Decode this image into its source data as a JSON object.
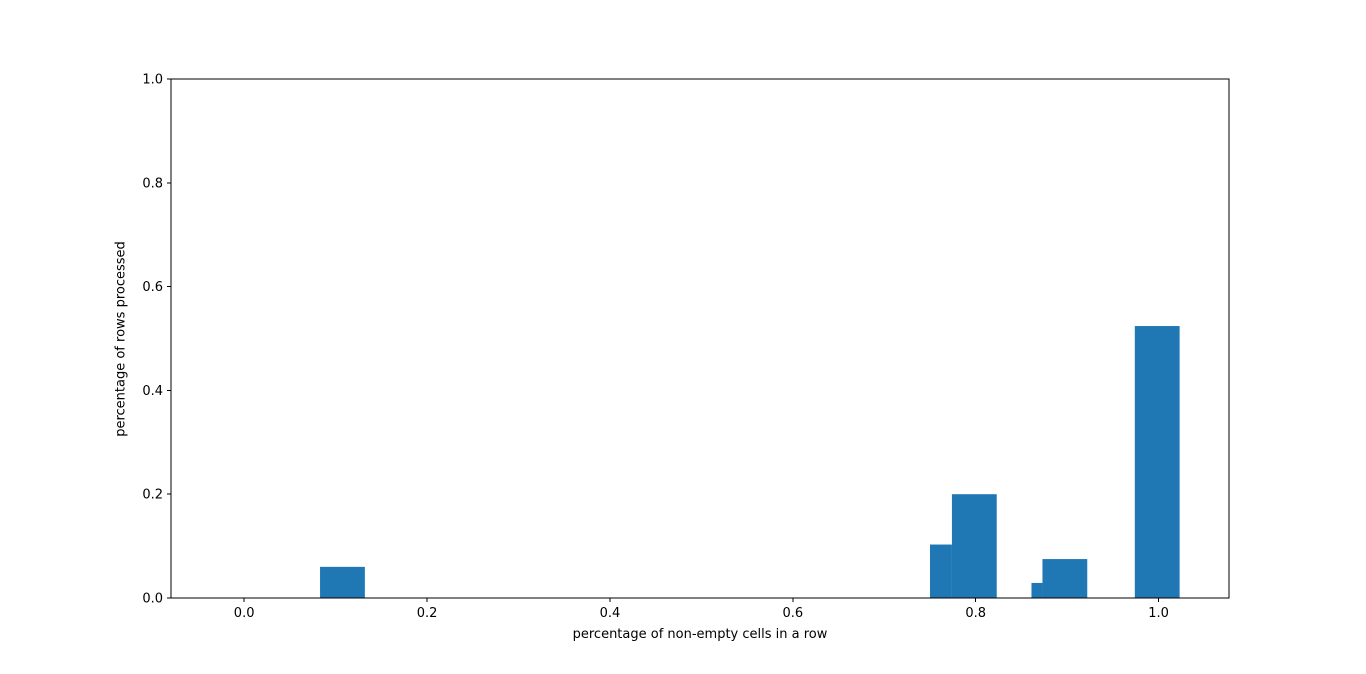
{
  "figure": {
    "background": "#ffffff"
  },
  "chart_data": {
    "type": "bar",
    "title": "",
    "xlabel": "percentage of non-empty cells in a row",
    "ylabel": "percentage of rows processed",
    "xlim": [
      -0.08,
      1.077
    ],
    "ylim": [
      0.0,
      1.0
    ],
    "xticks": [
      0.0,
      0.2,
      0.4,
      0.6,
      0.8,
      1.0
    ],
    "xtick_labels": [
      "0.0",
      "0.2",
      "0.4",
      "0.6",
      "0.8",
      "1.0"
    ],
    "yticks": [
      0.0,
      0.2,
      0.4,
      0.6,
      0.8,
      1.0
    ],
    "ytick_labels": [
      "0.0",
      "0.2",
      "0.4",
      "0.6",
      "0.8",
      "1.0"
    ],
    "grid": false,
    "legend": null,
    "bar_color": "#1f77b4",
    "bars": [
      {
        "x0": 0.083,
        "x1": 0.132,
        "height": 0.06
      },
      {
        "x0": 0.75,
        "x1": 0.774,
        "height": 0.103
      },
      {
        "x0": 0.774,
        "x1": 0.823,
        "height": 0.2
      },
      {
        "x0": 0.861,
        "x1": 0.873,
        "height": 0.029
      },
      {
        "x0": 0.873,
        "x1": 0.922,
        "height": 0.075
      },
      {
        "x0": 0.974,
        "x1": 1.023,
        "height": 0.524
      }
    ]
  }
}
